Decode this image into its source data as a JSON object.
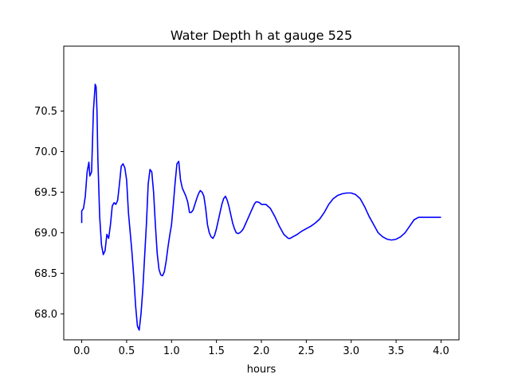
{
  "chart_data": {
    "type": "line",
    "title": "Water Depth h at gauge 525",
    "xlabel": "hours",
    "ylabel": "",
    "xlim": [
      -0.2,
      4.2
    ],
    "ylim": [
      67.68,
      71.3
    ],
    "xticks": [
      "0.0",
      "0.5",
      "1.0",
      "1.5",
      "2.0",
      "2.5",
      "3.0",
      "3.5",
      "4.0"
    ],
    "yticks": [
      "68.0",
      "68.5",
      "69.0",
      "69.5",
      "70.0",
      "70.5"
    ],
    "grid": false,
    "series": [
      {
        "color": "#0000ff",
        "x": [
          0.0,
          0.0,
          0.02,
          0.04,
          0.06,
          0.08,
          0.09,
          0.11,
          0.13,
          0.15,
          0.16,
          0.17,
          0.18,
          0.2,
          0.22,
          0.24,
          0.26,
          0.28,
          0.3,
          0.32,
          0.34,
          0.36,
          0.38,
          0.4,
          0.42,
          0.44,
          0.46,
          0.48,
          0.5,
          0.52,
          0.54,
          0.56,
          0.58,
          0.6,
          0.62,
          0.64,
          0.66,
          0.68,
          0.7,
          0.72,
          0.74,
          0.76,
          0.78,
          0.8,
          0.82,
          0.84,
          0.86,
          0.88,
          0.9,
          0.92,
          0.94,
          0.96,
          0.98,
          1.0,
          1.02,
          1.04,
          1.06,
          1.08,
          1.1,
          1.12,
          1.14,
          1.16,
          1.18,
          1.2,
          1.22,
          1.24,
          1.26,
          1.28,
          1.3,
          1.32,
          1.34,
          1.36,
          1.38,
          1.4,
          1.42,
          1.44,
          1.46,
          1.48,
          1.5,
          1.52,
          1.54,
          1.56,
          1.58,
          1.6,
          1.62,
          1.64,
          1.66,
          1.68,
          1.7,
          1.72,
          1.74,
          1.76,
          1.78,
          1.8,
          1.82,
          1.84,
          1.86,
          1.88,
          1.9,
          1.92,
          1.94,
          1.96,
          1.98,
          2.0,
          2.05,
          2.1,
          2.15,
          2.2,
          2.25,
          2.28,
          2.3,
          2.32,
          2.35,
          2.4,
          2.45,
          2.5,
          2.55,
          2.6,
          2.65,
          2.7,
          2.75,
          2.8,
          2.85,
          2.9,
          2.95,
          3.0,
          3.05,
          3.1,
          3.15,
          3.2,
          3.25,
          3.3,
          3.35,
          3.4,
          3.45,
          3.5,
          3.55,
          3.6,
          3.65,
          3.7,
          3.75,
          3.8,
          3.85,
          3.9,
          3.95,
          4.0
        ],
        "y": [
          69.12,
          69.27,
          69.3,
          69.45,
          69.75,
          69.87,
          69.7,
          69.75,
          70.5,
          70.83,
          70.8,
          70.5,
          69.9,
          69.2,
          68.85,
          68.73,
          68.78,
          68.98,
          68.93,
          69.1,
          69.33,
          69.37,
          69.35,
          69.4,
          69.6,
          69.82,
          69.85,
          69.8,
          69.65,
          69.25,
          69.0,
          68.75,
          68.45,
          68.1,
          67.85,
          67.8,
          68.0,
          68.3,
          68.7,
          69.1,
          69.6,
          69.78,
          69.75,
          69.5,
          69.1,
          68.75,
          68.55,
          68.48,
          68.47,
          68.52,
          68.65,
          68.82,
          68.97,
          69.1,
          69.35,
          69.62,
          69.85,
          69.88,
          69.65,
          69.55,
          69.5,
          69.45,
          69.38,
          69.25,
          69.25,
          69.28,
          69.35,
          69.42,
          69.48,
          69.52,
          69.5,
          69.45,
          69.3,
          69.1,
          69.0,
          68.95,
          68.93,
          68.97,
          69.05,
          69.15,
          69.25,
          69.35,
          69.42,
          69.45,
          69.4,
          69.32,
          69.22,
          69.12,
          69.05,
          69.0,
          68.99,
          69.0,
          69.02,
          69.05,
          69.1,
          69.15,
          69.2,
          69.25,
          69.3,
          69.35,
          69.38,
          69.38,
          69.37,
          69.35,
          69.35,
          69.3,
          69.2,
          69.08,
          68.98,
          68.95,
          68.93,
          68.93,
          68.95,
          68.98,
          69.02,
          69.05,
          69.08,
          69.12,
          69.17,
          69.25,
          69.35,
          69.42,
          69.46,
          69.48,
          69.49,
          69.49,
          69.47,
          69.42,
          69.32,
          69.2,
          69.1,
          69.0,
          68.95,
          68.92,
          68.91,
          68.92,
          68.95,
          69.0,
          69.08,
          69.16,
          69.19,
          69.19,
          69.19,
          69.19,
          69.19,
          69.19
        ]
      }
    ]
  }
}
